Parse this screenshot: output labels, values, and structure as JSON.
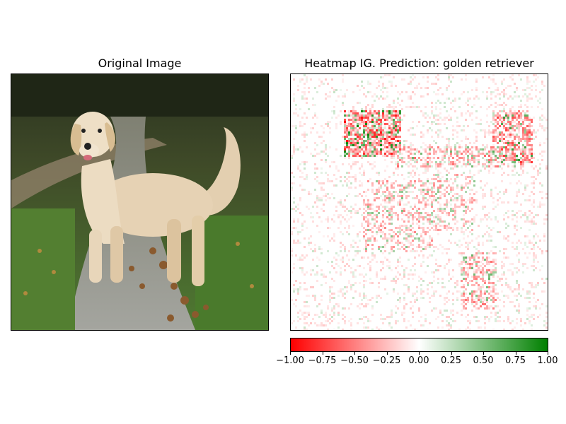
{
  "figure": {
    "left_title": "Original Image",
    "right_title": "Heatmap IG. Prediction: golden retriever"
  },
  "photo": {
    "subject": "golden retriever standing on gravel path in forest",
    "colors": {
      "forest_dark": "#2b3320",
      "grass": "#4f7a32",
      "path": "#9a9a94",
      "dog": "#e6d2b4",
      "dog_shadow": "#c9a983",
      "leaves": "#8a5a2e"
    }
  },
  "chart_data": {
    "type": "heatmap",
    "title": "Heatmap IG. Prediction: golden retriever",
    "colormap": {
      "min_color": "#ff0000",
      "mid_color": "#ffffff",
      "max_color": "#008000"
    },
    "vmin": -1.0,
    "vmax": 1.0,
    "colorbar_ticks": [
      "−1.00",
      "−0.75",
      "−0.50",
      "−0.25",
      "0.00",
      "0.25",
      "0.50",
      "0.75",
      "1.00"
    ],
    "colorbar_tick_values": [
      -1.0,
      -0.75,
      -0.5,
      -0.25,
      0.0,
      0.25,
      0.5,
      0.75,
      1.0
    ],
    "grid": false
  }
}
